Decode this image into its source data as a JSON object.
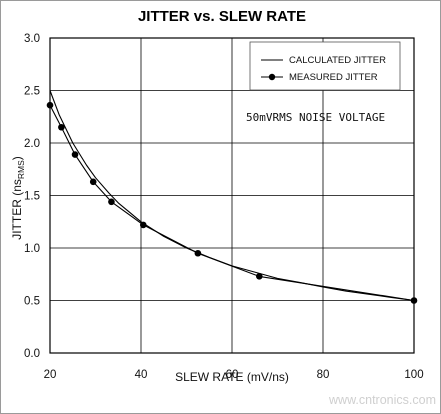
{
  "chart_data": {
    "type": "line",
    "title": "JITTER vs. SLEW RATE",
    "xlabel": "SLEW RATE (mV/ns)",
    "ylabel": "JITTER (ns RMS)",
    "ylabel_main": "JITTER (ns",
    "ylabel_sub": "RMS",
    "ylabel_close": ")",
    "xlim": [
      20,
      100
    ],
    "ylim": [
      0,
      3.0
    ],
    "xticks": [
      "20",
      "40",
      "60",
      "80",
      "100"
    ],
    "yticks": [
      "0.0",
      "0.5",
      "1.0",
      "1.5",
      "2.0",
      "2.5",
      "3.0"
    ],
    "grid": true,
    "legend_position": "top-right",
    "annotation": "50mVRMS NOISE VOLTAGE",
    "series": [
      {
        "name": "CALCULATED JITTER",
        "marker": "none",
        "x": [
          20,
          22,
          25,
          28,
          30,
          33,
          35,
          40,
          45,
          50,
          55,
          60,
          65,
          70,
          75,
          80,
          85,
          90,
          95,
          100
        ],
        "y": [
          2.5,
          2.27,
          2.0,
          1.79,
          1.67,
          1.52,
          1.43,
          1.25,
          1.11,
          1.0,
          0.91,
          0.83,
          0.77,
          0.71,
          0.67,
          0.63,
          0.59,
          0.56,
          0.53,
          0.5
        ]
      },
      {
        "name": "MEASURED JITTER",
        "marker": "circle",
        "x": [
          20,
          22.5,
          25.5,
          29.5,
          33.5,
          40.5,
          52.5,
          66,
          100
        ],
        "y": [
          2.36,
          2.15,
          1.89,
          1.63,
          1.44,
          1.22,
          0.95,
          0.73,
          0.5
        ]
      }
    ]
  },
  "watermark": "www.cntronics.com"
}
